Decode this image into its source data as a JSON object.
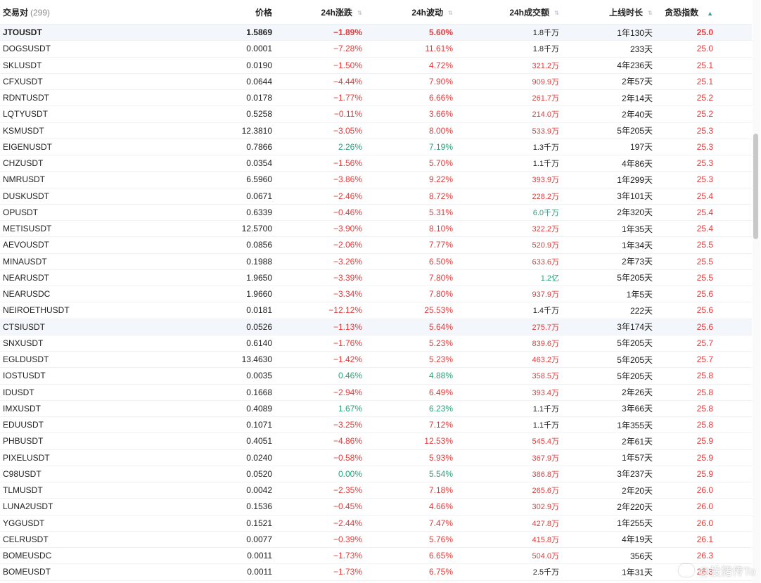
{
  "header": {
    "pair": "交易对",
    "count": "(299)",
    "price": "价格",
    "change": "24h涨跌",
    "volatility": "24h波动",
    "volume": "24h成交额",
    "age": "上线时长",
    "fear_greed": "贪恐指数"
  },
  "rows": [
    {
      "pair": "JTOUSDT",
      "price": "1.5869",
      "change": "−1.89%",
      "vol": "5.60%",
      "amount": "1.8千万",
      "age": "1年130天",
      "fg": "25.0"
    },
    {
      "pair": "DOGSUSDT",
      "price": "0.0001",
      "change": "−7.28%",
      "vol": "11.61%",
      "amount": "1.8千万",
      "age": "233天",
      "fg": "25.0"
    },
    {
      "pair": "SKLUSDT",
      "price": "0.0190",
      "change": "−1.50%",
      "vol": "4.72%",
      "amount": "321.2万",
      "age": "4年236天",
      "fg": "25.1"
    },
    {
      "pair": "CFXUSDT",
      "price": "0.0644",
      "change": "−4.44%",
      "vol": "7.90%",
      "amount": "909.9万",
      "age": "2年57天",
      "fg": "25.1"
    },
    {
      "pair": "RDNTUSDT",
      "price": "0.0178",
      "change": "−1.77%",
      "vol": "6.66%",
      "amount": "261.7万",
      "age": "2年14天",
      "fg": "25.2"
    },
    {
      "pair": "LQTYUSDT",
      "price": "0.5258",
      "change": "−0.11%",
      "vol": "3.66%",
      "amount": "214.0万",
      "age": "2年40天",
      "fg": "25.2"
    },
    {
      "pair": "KSMUSDT",
      "price": "12.3810",
      "change": "−3.05%",
      "vol": "8.00%",
      "amount": "533.9万",
      "age": "5年205天",
      "fg": "25.3"
    },
    {
      "pair": "EIGENUSDT",
      "price": "0.7866",
      "change": "2.26%",
      "vol": "7.19%",
      "amount": "1.3千万",
      "age": "197天",
      "fg": "25.3"
    },
    {
      "pair": "CHZUSDT",
      "price": "0.0354",
      "change": "−1.56%",
      "vol": "5.70%",
      "amount": "1.1千万",
      "age": "4年86天",
      "fg": "25.3"
    },
    {
      "pair": "NMRUSDT",
      "price": "6.5960",
      "change": "−3.86%",
      "vol": "9.22%",
      "amount": "393.9万",
      "age": "1年299天",
      "fg": "25.3"
    },
    {
      "pair": "DUSKUSDT",
      "price": "0.0671",
      "change": "−2.46%",
      "vol": "8.72%",
      "amount": "228.2万",
      "age": "3年101天",
      "fg": "25.4"
    },
    {
      "pair": "OPUSDT",
      "price": "0.6339",
      "change": "−0.46%",
      "vol": "5.31%",
      "amount": "6.0千万",
      "age": "2年320天",
      "fg": "25.4"
    },
    {
      "pair": "METISUSDT",
      "price": "12.5700",
      "change": "−3.90%",
      "vol": "8.10%",
      "amount": "322.2万",
      "age": "1年35天",
      "fg": "25.4"
    },
    {
      "pair": "AEVOUSDT",
      "price": "0.0856",
      "change": "−2.06%",
      "vol": "7.77%",
      "amount": "520.9万",
      "age": "1年34天",
      "fg": "25.5"
    },
    {
      "pair": "MINAUSDT",
      "price": "0.1988",
      "change": "−3.26%",
      "vol": "6.50%",
      "amount": "633.6万",
      "age": "2年73天",
      "fg": "25.5"
    },
    {
      "pair": "NEARUSDT",
      "price": "1.9650",
      "change": "−3.39%",
      "vol": "7.80%",
      "amount": "1.2亿",
      "age": "5年205天",
      "fg": "25.5"
    },
    {
      "pair": "NEARUSDC",
      "price": "1.9660",
      "change": "−3.34%",
      "vol": "7.80%",
      "amount": "937.9万",
      "age": "1年5天",
      "fg": "25.6"
    },
    {
      "pair": "NEIROETHUSDT",
      "price": "0.0181",
      "change": "−12.12%",
      "vol": "25.53%",
      "amount": "1.4千万",
      "age": "222天",
      "fg": "25.6"
    },
    {
      "pair": "CTSIUSDT",
      "price": "0.0526",
      "change": "−1.13%",
      "vol": "5.64%",
      "amount": "275.7万",
      "age": "3年174天",
      "fg": "25.6"
    },
    {
      "pair": "SNXUSDT",
      "price": "0.6140",
      "change": "−1.76%",
      "vol": "5.23%",
      "amount": "839.6万",
      "age": "5年205天",
      "fg": "25.7"
    },
    {
      "pair": "EGLDUSDT",
      "price": "13.4630",
      "change": "−1.42%",
      "vol": "5.23%",
      "amount": "463.2万",
      "age": "5年205天",
      "fg": "25.7"
    },
    {
      "pair": "IOSTUSDT",
      "price": "0.0035",
      "change": "0.46%",
      "vol": "4.88%",
      "amount": "358.5万",
      "age": "5年205天",
      "fg": "25.8"
    },
    {
      "pair": "IDUSDT",
      "price": "0.1668",
      "change": "−2.94%",
      "vol": "6.49%",
      "amount": "393.4万",
      "age": "2年26天",
      "fg": "25.8"
    },
    {
      "pair": "IMXUSDT",
      "price": "0.4089",
      "change": "1.67%",
      "vol": "6.23%",
      "amount": "1.1千万",
      "age": "3年66天",
      "fg": "25.8"
    },
    {
      "pair": "EDUUSDT",
      "price": "0.1071",
      "change": "−3.25%",
      "vol": "7.12%",
      "amount": "1.1千万",
      "age": "1年355天",
      "fg": "25.8"
    },
    {
      "pair": "PHBUSDT",
      "price": "0.4051",
      "change": "−4.86%",
      "vol": "12.53%",
      "amount": "545.4万",
      "age": "2年61天",
      "fg": "25.9"
    },
    {
      "pair": "PIXELUSDT",
      "price": "0.0240",
      "change": "−0.58%",
      "vol": "5.93%",
      "amount": "367.9万",
      "age": "1年57天",
      "fg": "25.9"
    },
    {
      "pair": "C98USDT",
      "price": "0.0520",
      "change": "0.00%",
      "vol": "5.54%",
      "amount": "386.8万",
      "age": "3年237天",
      "fg": "25.9"
    },
    {
      "pair": "TLMUSDT",
      "price": "0.0042",
      "change": "−2.35%",
      "vol": "7.18%",
      "amount": "265.6万",
      "age": "2年20天",
      "fg": "26.0"
    },
    {
      "pair": "LUNA2USDT",
      "price": "0.1536",
      "change": "−0.45%",
      "vol": "4.66%",
      "amount": "302.9万",
      "age": "2年220天",
      "fg": "26.0"
    },
    {
      "pair": "YGGUSDT",
      "price": "0.1521",
      "change": "−2.44%",
      "vol": "7.47%",
      "amount": "427.8万",
      "age": "1年255天",
      "fg": "26.0"
    },
    {
      "pair": "CELRUSDT",
      "price": "0.0077",
      "change": "−0.39%",
      "vol": "5.76%",
      "amount": "415.8万",
      "age": "4年19天",
      "fg": "26.1"
    },
    {
      "pair": "BOMEUSDC",
      "price": "0.0011",
      "change": "−1.73%",
      "vol": "6.65%",
      "amount": "504.0万",
      "age": "356天",
      "fg": "26.3"
    },
    {
      "pair": "BOMEUSDT",
      "price": "0.0011",
      "change": "−1.73%",
      "vol": "6.75%",
      "amount": "2.5千万",
      "age": "1年31天",
      "fg": "26.3"
    }
  ],
  "colors": {
    "negative": "#e23b3b",
    "positive": "#27a17a",
    "neutral_amount": "#222222"
  },
  "watermark": "@投猪传To"
}
